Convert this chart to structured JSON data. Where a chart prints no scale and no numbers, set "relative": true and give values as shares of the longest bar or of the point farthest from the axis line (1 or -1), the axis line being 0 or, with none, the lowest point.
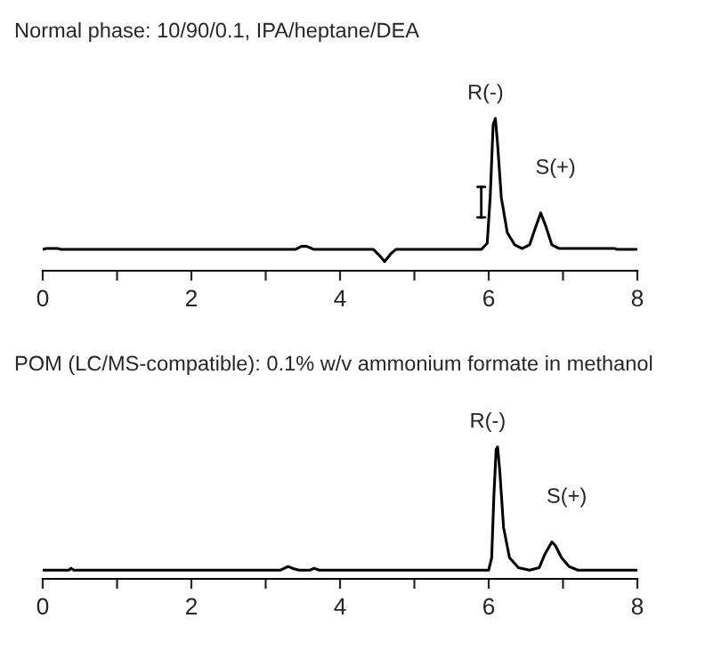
{
  "chart_data": [
    {
      "type": "line",
      "title": "Normal phase: 10/90/0.1, IPA/heptane/DEA",
      "relative": true,
      "xlim": [
        0,
        8
      ],
      "xticks": [
        0,
        {
          "value": 1,
          "label": null
        },
        2,
        {
          "value": 3,
          "label": null
        },
        4,
        {
          "value": 5,
          "label": null
        },
        6,
        {
          "value": 7,
          "label": null
        },
        8
      ],
      "tick_labels": "x",
      "marker": "none",
      "line_style": "solid",
      "series": [
        {
          "color": "#000000",
          "x": [
            0,
            0.05,
            0.2,
            0.25,
            3.4,
            3.48,
            3.55,
            3.65,
            4.45,
            4.55,
            4.6,
            4.68,
            4.75,
            5.9,
            5.98,
            6.02,
            6.06,
            6.09,
            6.12,
            6.17,
            6.25,
            6.35,
            6.45,
            6.55,
            6.62,
            6.7,
            6.77,
            6.85,
            6.95,
            7.1,
            7.7,
            7.72,
            8
          ],
          "values": [
            0.14,
            0.146,
            0.146,
            0.14,
            0.14,
            0.16,
            0.16,
            0.14,
            0.14,
            0.09,
            0.06,
            0.11,
            0.14,
            0.14,
            0.18,
            0.48,
            0.96,
            1.0,
            0.83,
            0.48,
            0.25,
            0.17,
            0.146,
            0.17,
            0.27,
            0.38,
            0.29,
            0.17,
            0.146,
            0.146,
            0.146,
            0.14,
            0.14
          ]
        }
      ],
      "annotations": [
        {
          "text": "R(-)",
          "x": 6.09,
          "y": 1.0
        },
        {
          "text": "S(+)",
          "x": 6.7,
          "y": 0.38
        }
      ]
    },
    {
      "type": "line",
      "title": "POM (LC/MS-compatible): 0.1% w/v ammonium formate in methanol",
      "relative": true,
      "xlim": [
        0,
        8
      ],
      "xticks": [
        0,
        {
          "value": 1,
          "label": null
        },
        2,
        {
          "value": 3,
          "label": null
        },
        4,
        {
          "value": 5,
          "label": null
        },
        6,
        {
          "value": 7,
          "label": null
        },
        8
      ],
      "tick_labels": "x",
      "marker": "none",
      "line_style": "solid",
      "series": [
        {
          "color": "#000000",
          "x": [
            0,
            0.35,
            0.38,
            0.42,
            3.2,
            3.3,
            3.38,
            3.45,
            3.6,
            3.65,
            3.72,
            6.0,
            6.04,
            6.07,
            6.1,
            6.12,
            6.15,
            6.2,
            6.28,
            6.4,
            6.55,
            6.68,
            6.75,
            6.85,
            6.9,
            6.98,
            7.08,
            7.2,
            8
          ],
          "values": [
            0.066,
            0.066,
            0.08,
            0.066,
            0.066,
            0.094,
            0.076,
            0.066,
            0.066,
            0.08,
            0.066,
            0.066,
            0.16,
            0.63,
            0.98,
            1.0,
            0.81,
            0.39,
            0.16,
            0.085,
            0.066,
            0.085,
            0.18,
            0.28,
            0.25,
            0.16,
            0.094,
            0.066,
            0.066
          ]
        }
      ],
      "annotations": [
        {
          "text": "R(-)",
          "x": 6.12,
          "y": 1.0
        },
        {
          "text": "S(+)",
          "x": 6.85,
          "y": 0.28
        }
      ]
    }
  ]
}
